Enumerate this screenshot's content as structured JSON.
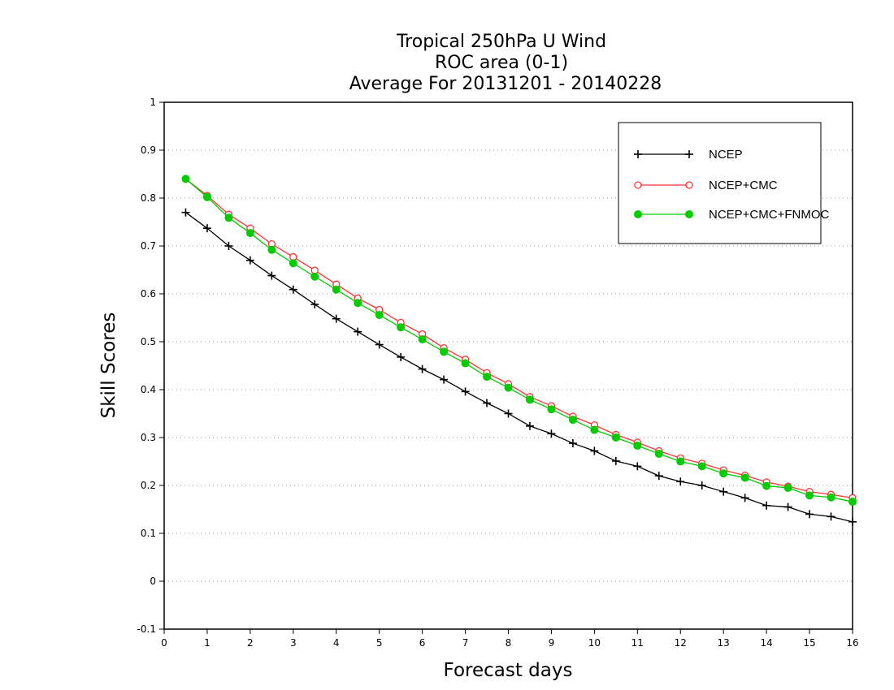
{
  "chart_data": {
    "type": "line",
    "title": [
      "Tropical 250hPa U Wind",
      "ROC area (0-1)",
      "Average For 20131201 - 20140228"
    ],
    "xlabel": "Forecast days",
    "ylabel": "Skill Scores",
    "xlim": [
      0,
      16
    ],
    "ylim": [
      -0.1,
      1
    ],
    "x_ticks": [
      "0",
      "1",
      "2",
      "3",
      "4",
      "5",
      "6",
      "7",
      "8",
      "9",
      "10",
      "11",
      "12",
      "13",
      "14",
      "15",
      "16"
    ],
    "y_ticks": [
      "-0.1",
      "0",
      "0.1",
      "0.2",
      "0.3",
      "0.4",
      "0.5",
      "0.6",
      "0.7",
      "0.8",
      "0.9",
      "1"
    ],
    "grid": "horizontal dotted",
    "legend_position": "top-right",
    "x": [
      0.5,
      1,
      1.5,
      2,
      2.5,
      3,
      3.5,
      4,
      4.5,
      5,
      5.5,
      6,
      6.5,
      7,
      7.5,
      8,
      8.5,
      9,
      9.5,
      10,
      10.5,
      11,
      11.5,
      12,
      12.5,
      13,
      13.5,
      14,
      14.5,
      15,
      15.5,
      16
    ],
    "series": [
      {
        "name": "NCEP",
        "color": "#000000",
        "marker": "plus",
        "values": [
          0.77,
          0.737,
          0.7,
          0.67,
          0.638,
          0.609,
          0.578,
          0.548,
          0.521,
          0.494,
          0.468,
          0.443,
          0.421,
          0.396,
          0.372,
          0.35,
          0.324,
          0.308,
          0.288,
          0.272,
          0.251,
          0.24,
          0.22,
          0.208,
          0.2,
          0.187,
          0.174,
          0.158,
          0.155,
          0.14,
          0.135,
          0.124
        ]
      },
      {
        "name": "NCEP+CMC",
        "color": "#ff3333",
        "marker": "open-circle",
        "values": [
          0.84,
          0.805,
          0.766,
          0.737,
          0.704,
          0.677,
          0.649,
          0.62,
          0.591,
          0.567,
          0.54,
          0.516,
          0.487,
          0.463,
          0.435,
          0.412,
          0.385,
          0.366,
          0.344,
          0.326,
          0.306,
          0.29,
          0.272,
          0.257,
          0.246,
          0.232,
          0.221,
          0.207,
          0.198,
          0.187,
          0.181,
          0.174
        ]
      },
      {
        "name": "NCEP+CMC+FNMOC",
        "color": "#00cc00",
        "marker": "filled-circle",
        "values": [
          0.84,
          0.802,
          0.759,
          0.727,
          0.692,
          0.664,
          0.636,
          0.609,
          0.581,
          0.556,
          0.53,
          0.505,
          0.479,
          0.455,
          0.427,
          0.404,
          0.379,
          0.359,
          0.337,
          0.316,
          0.3,
          0.283,
          0.266,
          0.25,
          0.24,
          0.225,
          0.216,
          0.199,
          0.195,
          0.179,
          0.175,
          0.166
        ]
      }
    ]
  }
}
